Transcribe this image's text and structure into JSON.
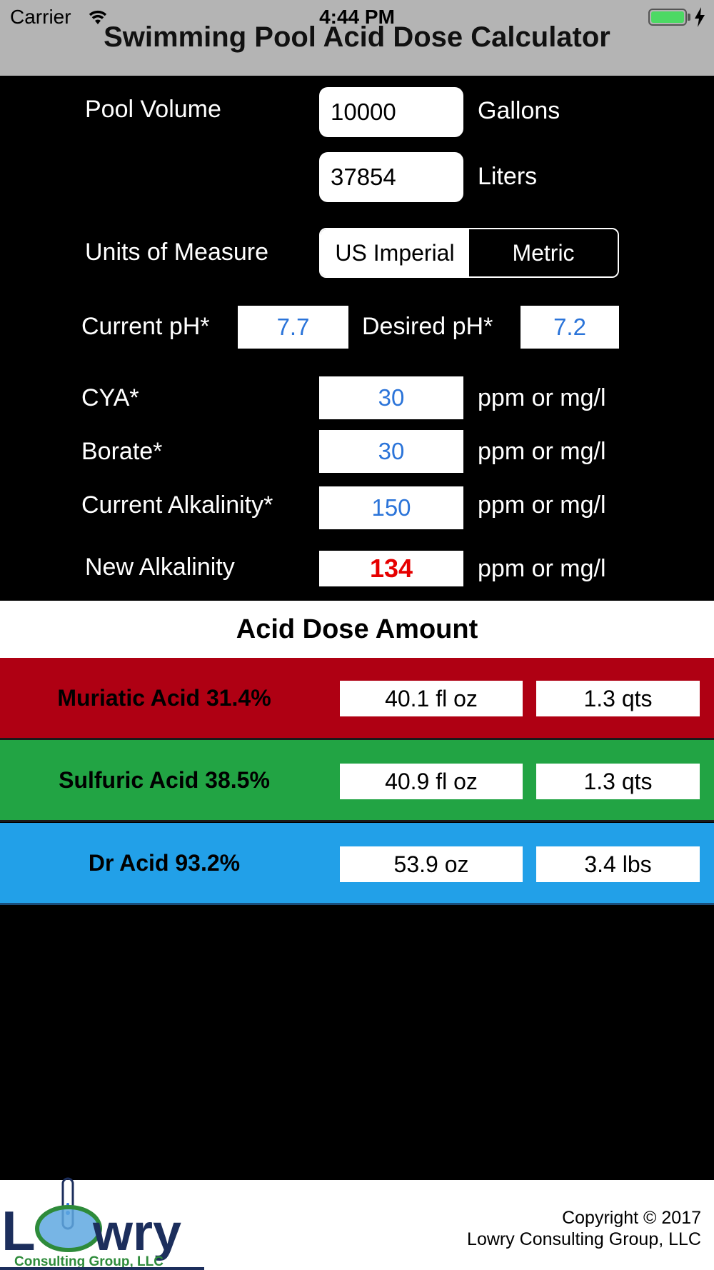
{
  "status_bar": {
    "carrier": "Carrier",
    "time": "4:44 PM"
  },
  "app": {
    "title": "Swimming Pool Acid Dose Calculator"
  },
  "pool_volume": {
    "label": "Pool Volume",
    "gallons_value": "10000",
    "gallons_unit": "Gallons",
    "liters_value": "37854",
    "liters_unit": "Liters"
  },
  "units_of_measure": {
    "label": "Units of Measure",
    "options": [
      "US Imperial",
      "Metric"
    ],
    "selected": "US Imperial"
  },
  "ph": {
    "current_label": "Current pH*",
    "current_value": "7.7",
    "desired_label": "Desired pH*",
    "desired_value": "7.2"
  },
  "cya": {
    "label": "CYA*",
    "value": "30",
    "unit": "ppm or mg/l"
  },
  "borate": {
    "label": "Borate*",
    "value": "30",
    "unit": "ppm or mg/l"
  },
  "current_alkalinity": {
    "label": "Current Alkalinity*",
    "value": "150",
    "unit": "ppm or mg/l"
  },
  "new_alkalinity": {
    "label": "New Alkalinity",
    "value": "134",
    "unit": "ppm or mg/l"
  },
  "acid_dose": {
    "header": "Acid Dose Amount",
    "rows": [
      {
        "name": "Muriatic Acid 31.4%",
        "amount1": "40.1 fl oz",
        "amount2": "1.3 qts",
        "color": "#af0013"
      },
      {
        "name": "Sulfuric Acid 38.5%",
        "amount1": "40.9 fl oz",
        "amount2": "1.3 qts",
        "color": "#22a444"
      },
      {
        "name": "Dr Acid 93.2%",
        "amount1": "53.9 oz",
        "amount2": "3.4 lbs",
        "color": "#22a0e8"
      }
    ]
  },
  "footer": {
    "logo_text": "Lowry",
    "logo_subtext": "Consulting Group, LLC",
    "copyright_line1": "Copyright © 2017",
    "copyright_line2": "Lowry Consulting Group, LLC"
  },
  "colors": {
    "status_bar_bg": "#b4b4b4",
    "value_blue": "#2b74d9",
    "value_red": "#e60000",
    "logo_navy": "#1c2e5c",
    "logo_green": "#2e8b3a"
  }
}
